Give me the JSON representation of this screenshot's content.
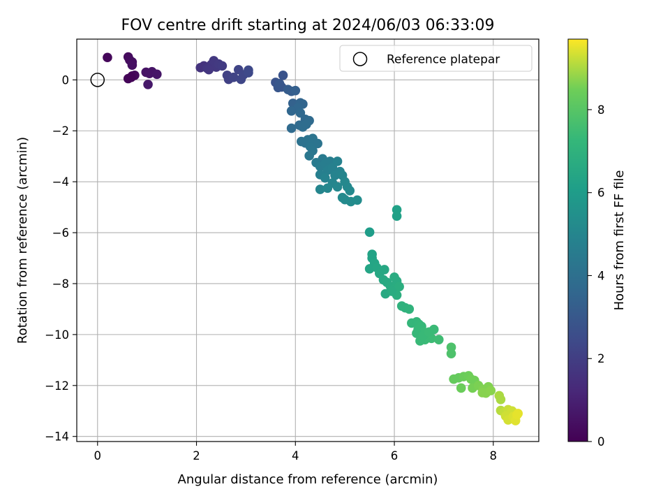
{
  "chart_data": {
    "type": "scatter",
    "title": "FOV centre drift starting at 2024/06/03 06:33:09",
    "xlabel": "Angular distance from reference (arcmin)",
    "ylabel": "Rotation from reference (arcmin)",
    "xlim": [
      -0.42,
      8.92
    ],
    "ylim": [
      -14.2,
      1.6
    ],
    "xticks": [
      0,
      2,
      4,
      6,
      8
    ],
    "yticks": [
      0,
      -2,
      -4,
      -6,
      -8,
      -10,
      -12,
      -14
    ],
    "grid": true,
    "colormap": "viridis",
    "colorbar": {
      "label": "Hours from first FF file",
      "range": [
        0,
        9.7
      ],
      "ticks": [
        0,
        2,
        4,
        6,
        8
      ]
    },
    "legend": {
      "placement": "top-right",
      "entries": [
        "Reference platepar"
      ]
    },
    "reference": {
      "x": 0,
      "y": 0
    },
    "points": [
      {
        "x": 0.2,
        "y": 0.88,
        "t": 0.2
      },
      {
        "x": 0.62,
        "y": 0.9,
        "t": 0.3
      },
      {
        "x": 0.65,
        "y": 0.78,
        "t": 0.35
      },
      {
        "x": 0.7,
        "y": 0.7,
        "t": 0.4
      },
      {
        "x": 0.7,
        "y": 0.58,
        "t": 0.45
      },
      {
        "x": 0.62,
        "y": 0.05,
        "t": 0.15
      },
      {
        "x": 0.7,
        "y": 0.15,
        "t": 0.2
      },
      {
        "x": 0.75,
        "y": 0.18,
        "t": 0.25
      },
      {
        "x": 0.68,
        "y": 0.1,
        "t": 0.1
      },
      {
        "x": 0.98,
        "y": 0.3,
        "t": 0.55
      },
      {
        "x": 1.05,
        "y": 0.25,
        "t": 0.6
      },
      {
        "x": 1.1,
        "y": 0.32,
        "t": 0.6
      },
      {
        "x": 1.2,
        "y": 0.22,
        "t": 0.65
      },
      {
        "x": 1.02,
        "y": -0.18,
        "t": 0.7
      },
      {
        "x": 2.08,
        "y": 0.48,
        "t": 1.6
      },
      {
        "x": 2.15,
        "y": 0.55,
        "t": 1.6
      },
      {
        "x": 2.22,
        "y": 0.45,
        "t": 1.7
      },
      {
        "x": 2.3,
        "y": 0.6,
        "t": 1.7
      },
      {
        "x": 2.35,
        "y": 0.75,
        "t": 1.8
      },
      {
        "x": 2.4,
        "y": 0.5,
        "t": 1.8
      },
      {
        "x": 2.45,
        "y": 0.62,
        "t": 1.85
      },
      {
        "x": 2.52,
        "y": 0.55,
        "t": 1.9
      },
      {
        "x": 2.25,
        "y": 0.4,
        "t": 1.75
      },
      {
        "x": 2.62,
        "y": 0.18,
        "t": 2.1
      },
      {
        "x": 2.65,
        "y": 0.02,
        "t": 2.1
      },
      {
        "x": 2.75,
        "y": 0.1,
        "t": 2.2
      },
      {
        "x": 2.85,
        "y": 0.4,
        "t": 2.2
      },
      {
        "x": 2.9,
        "y": 0.02,
        "t": 2.3
      },
      {
        "x": 2.95,
        "y": 0.2,
        "t": 2.3
      },
      {
        "x": 3.05,
        "y": 0.38,
        "t": 2.4
      },
      {
        "x": 3.05,
        "y": 0.28,
        "t": 2.4
      },
      {
        "x": 3.75,
        "y": 0.18,
        "t": 2.8
      },
      {
        "x": 3.6,
        "y": -0.1,
        "t": 2.8
      },
      {
        "x": 3.65,
        "y": -0.3,
        "t": 2.9
      },
      {
        "x": 3.72,
        "y": -0.28,
        "t": 2.9
      },
      {
        "x": 3.68,
        "y": -0.15,
        "t": 2.95
      },
      {
        "x": 3.85,
        "y": -0.38,
        "t": 3.2
      },
      {
        "x": 3.92,
        "y": -0.45,
        "t": 3.2
      },
      {
        "x": 4.0,
        "y": -0.42,
        "t": 3.3
      },
      {
        "x": 3.95,
        "y": -0.92,
        "t": 3.4
      },
      {
        "x": 4.1,
        "y": -0.9,
        "t": 3.5
      },
      {
        "x": 4.15,
        "y": -0.95,
        "t": 3.5
      },
      {
        "x": 4.05,
        "y": -1.1,
        "t": 3.6
      },
      {
        "x": 3.92,
        "y": -1.22,
        "t": 3.6
      },
      {
        "x": 4.1,
        "y": -1.3,
        "t": 3.7
      },
      {
        "x": 4.2,
        "y": -1.55,
        "t": 3.7
      },
      {
        "x": 4.28,
        "y": -1.6,
        "t": 3.8
      },
      {
        "x": 4.08,
        "y": -1.78,
        "t": 3.8
      },
      {
        "x": 4.15,
        "y": -1.85,
        "t": 3.85
      },
      {
        "x": 4.22,
        "y": -1.75,
        "t": 3.85
      },
      {
        "x": 3.92,
        "y": -1.9,
        "t": 3.8
      },
      {
        "x": 4.12,
        "y": -2.42,
        "t": 4.1
      },
      {
        "x": 4.2,
        "y": -2.48,
        "t": 4.1
      },
      {
        "x": 4.25,
        "y": -2.35,
        "t": 4.15
      },
      {
        "x": 4.35,
        "y": -2.3,
        "t": 4.2
      },
      {
        "x": 4.45,
        "y": -2.5,
        "t": 4.2
      },
      {
        "x": 4.3,
        "y": -2.62,
        "t": 4.25
      },
      {
        "x": 4.35,
        "y": -2.78,
        "t": 4.3
      },
      {
        "x": 4.28,
        "y": -2.98,
        "t": 4.35
      },
      {
        "x": 4.55,
        "y": -3.1,
        "t": 4.5
      },
      {
        "x": 4.42,
        "y": -3.25,
        "t": 4.5
      },
      {
        "x": 4.5,
        "y": -3.4,
        "t": 4.55
      },
      {
        "x": 4.6,
        "y": -3.3,
        "t": 4.6
      },
      {
        "x": 4.7,
        "y": -3.2,
        "t": 4.6
      },
      {
        "x": 4.65,
        "y": -3.55,
        "t": 4.7
      },
      {
        "x": 4.5,
        "y": -3.72,
        "t": 4.7
      },
      {
        "x": 4.75,
        "y": -3.45,
        "t": 4.75
      },
      {
        "x": 4.85,
        "y": -3.2,
        "t": 4.8
      },
      {
        "x": 4.6,
        "y": -3.85,
        "t": 4.85
      },
      {
        "x": 4.8,
        "y": -3.75,
        "t": 4.9
      },
      {
        "x": 4.9,
        "y": -3.6,
        "t": 4.9
      },
      {
        "x": 4.95,
        "y": -3.75,
        "t": 5.0
      },
      {
        "x": 4.75,
        "y": -4.05,
        "t": 5.0
      },
      {
        "x": 4.85,
        "y": -4.2,
        "t": 5.05
      },
      {
        "x": 4.5,
        "y": -4.3,
        "t": 5.0
      },
      {
        "x": 4.65,
        "y": -4.25,
        "t": 5.05
      },
      {
        "x": 5.0,
        "y": -4.0,
        "t": 5.1
      },
      {
        "x": 5.05,
        "y": -4.2,
        "t": 5.1
      },
      {
        "x": 5.1,
        "y": -4.35,
        "t": 5.15
      },
      {
        "x": 4.95,
        "y": -4.62,
        "t": 5.2
      },
      {
        "x": 5.0,
        "y": -4.7,
        "t": 5.2
      },
      {
        "x": 5.12,
        "y": -4.78,
        "t": 5.25
      },
      {
        "x": 5.25,
        "y": -4.72,
        "t": 5.3
      },
      {
        "x": 6.05,
        "y": -5.1,
        "t": 6.2
      },
      {
        "x": 6.05,
        "y": -5.35,
        "t": 6.2
      },
      {
        "x": 5.5,
        "y": -5.98,
        "t": 6.0
      },
      {
        "x": 5.55,
        "y": -6.85,
        "t": 6.3
      },
      {
        "x": 5.55,
        "y": -7.0,
        "t": 6.3
      },
      {
        "x": 5.6,
        "y": -7.2,
        "t": 6.4
      },
      {
        "x": 5.5,
        "y": -7.42,
        "t": 6.4
      },
      {
        "x": 5.65,
        "y": -7.38,
        "t": 6.45
      },
      {
        "x": 5.7,
        "y": -7.6,
        "t": 6.5
      },
      {
        "x": 5.8,
        "y": -7.45,
        "t": 6.5
      },
      {
        "x": 5.78,
        "y": -7.85,
        "t": 6.55
      },
      {
        "x": 5.85,
        "y": -7.95,
        "t": 6.6
      },
      {
        "x": 5.82,
        "y": -8.4,
        "t": 6.6
      },
      {
        "x": 5.92,
        "y": -8.1,
        "t": 6.65
      },
      {
        "x": 6.0,
        "y": -7.75,
        "t": 6.7
      },
      {
        "x": 6.05,
        "y": -7.9,
        "t": 6.7
      },
      {
        "x": 6.0,
        "y": -8.2,
        "t": 6.75
      },
      {
        "x": 6.05,
        "y": -8.45,
        "t": 6.8
      },
      {
        "x": 6.1,
        "y": -8.12,
        "t": 6.8
      },
      {
        "x": 5.95,
        "y": -8.3,
        "t": 6.7
      },
      {
        "x": 6.15,
        "y": -8.88,
        "t": 7.0
      },
      {
        "x": 6.22,
        "y": -8.95,
        "t": 7.0
      },
      {
        "x": 6.3,
        "y": -9.0,
        "t": 7.05
      },
      {
        "x": 6.35,
        "y": -9.55,
        "t": 7.2
      },
      {
        "x": 6.45,
        "y": -9.5,
        "t": 7.2
      },
      {
        "x": 6.5,
        "y": -9.6,
        "t": 7.25
      },
      {
        "x": 6.55,
        "y": -9.68,
        "t": 7.3
      },
      {
        "x": 6.48,
        "y": -9.8,
        "t": 7.3
      },
      {
        "x": 6.6,
        "y": -9.9,
        "t": 7.35
      },
      {
        "x": 6.7,
        "y": -10.0,
        "t": 7.4
      },
      {
        "x": 6.8,
        "y": -9.8,
        "t": 7.4
      },
      {
        "x": 6.75,
        "y": -10.15,
        "t": 7.45
      },
      {
        "x": 6.62,
        "y": -10.2,
        "t": 7.4
      },
      {
        "x": 6.52,
        "y": -10.25,
        "t": 7.35
      },
      {
        "x": 6.9,
        "y": -10.2,
        "t": 7.5
      },
      {
        "x": 6.45,
        "y": -9.95,
        "t": 7.3
      },
      {
        "x": 6.58,
        "y": -10.05,
        "t": 7.35
      },
      {
        "x": 6.7,
        "y": -9.9,
        "t": 7.4
      },
      {
        "x": 7.15,
        "y": -10.5,
        "t": 7.8
      },
      {
        "x": 7.15,
        "y": -10.75,
        "t": 7.8
      },
      {
        "x": 7.2,
        "y": -11.75,
        "t": 8.3
      },
      {
        "x": 7.3,
        "y": -11.7,
        "t": 8.3
      },
      {
        "x": 7.35,
        "y": -12.1,
        "t": 8.4
      },
      {
        "x": 7.4,
        "y": -11.65,
        "t": 8.4
      },
      {
        "x": 7.5,
        "y": -11.62,
        "t": 8.45
      },
      {
        "x": 7.55,
        "y": -11.75,
        "t": 8.5
      },
      {
        "x": 7.62,
        "y": -11.8,
        "t": 8.5
      },
      {
        "x": 7.58,
        "y": -12.1,
        "t": 8.55
      },
      {
        "x": 7.7,
        "y": -12.0,
        "t": 8.6
      },
      {
        "x": 7.8,
        "y": -12.15,
        "t": 8.65
      },
      {
        "x": 7.9,
        "y": -12.05,
        "t": 8.65
      },
      {
        "x": 7.78,
        "y": -12.28,
        "t": 8.7
      },
      {
        "x": 7.85,
        "y": -12.3,
        "t": 8.7
      },
      {
        "x": 7.95,
        "y": -12.2,
        "t": 8.72
      },
      {
        "x": 8.12,
        "y": -12.4,
        "t": 9.0
      },
      {
        "x": 8.15,
        "y": -12.55,
        "t": 9.0
      },
      {
        "x": 8.15,
        "y": -12.98,
        "t": 9.1
      },
      {
        "x": 8.22,
        "y": -13.05,
        "t": 9.2
      },
      {
        "x": 8.3,
        "y": -12.95,
        "t": 9.25
      },
      {
        "x": 8.38,
        "y": -13.0,
        "t": 9.3
      },
      {
        "x": 8.25,
        "y": -13.2,
        "t": 9.3
      },
      {
        "x": 8.3,
        "y": -13.35,
        "t": 9.35
      },
      {
        "x": 8.4,
        "y": -13.22,
        "t": 9.4
      },
      {
        "x": 8.45,
        "y": -13.38,
        "t": 9.45
      },
      {
        "x": 8.48,
        "y": -13.15,
        "t": 9.5
      },
      {
        "x": 8.5,
        "y": -13.1,
        "t": 9.5
      }
    ]
  }
}
